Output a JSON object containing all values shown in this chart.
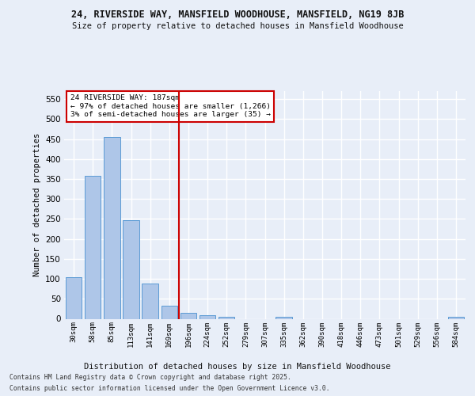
{
  "title": "24, RIVERSIDE WAY, MANSFIELD WOODHOUSE, MANSFIELD, NG19 8JB",
  "subtitle": "Size of property relative to detached houses in Mansfield Woodhouse",
  "xlabel": "Distribution of detached houses by size in Mansfield Woodhouse",
  "ylabel": "Number of detached properties",
  "footer_line1": "Contains HM Land Registry data © Crown copyright and database right 2025.",
  "footer_line2": "Contains public sector information licensed under the Open Government Licence v3.0.",
  "annotation_line1": "24 RIVERSIDE WAY: 187sqm",
  "annotation_line2": "← 97% of detached houses are smaller (1,266)",
  "annotation_line3": "3% of semi-detached houses are larger (35) →",
  "bar_color": "#aec6e8",
  "bar_edge_color": "#5b9bd5",
  "ref_line_color": "#cc0000",
  "ref_line_x": 5.5,
  "background_color": "#e8eef8",
  "grid_color": "#ffffff",
  "categories": [
    "30sqm",
    "58sqm",
    "85sqm",
    "113sqm",
    "141sqm",
    "169sqm",
    "196sqm",
    "224sqm",
    "252sqm",
    "279sqm",
    "307sqm",
    "335sqm",
    "362sqm",
    "390sqm",
    "418sqm",
    "446sqm",
    "473sqm",
    "501sqm",
    "529sqm",
    "556sqm",
    "584sqm"
  ],
  "values": [
    105,
    357,
    455,
    246,
    89,
    32,
    14,
    9,
    5,
    0,
    0,
    5,
    0,
    0,
    0,
    0,
    0,
    0,
    0,
    0,
    5
  ],
  "ylim": [
    0,
    570
  ],
  "yticks": [
    0,
    50,
    100,
    150,
    200,
    250,
    300,
    350,
    400,
    450,
    500,
    550
  ]
}
